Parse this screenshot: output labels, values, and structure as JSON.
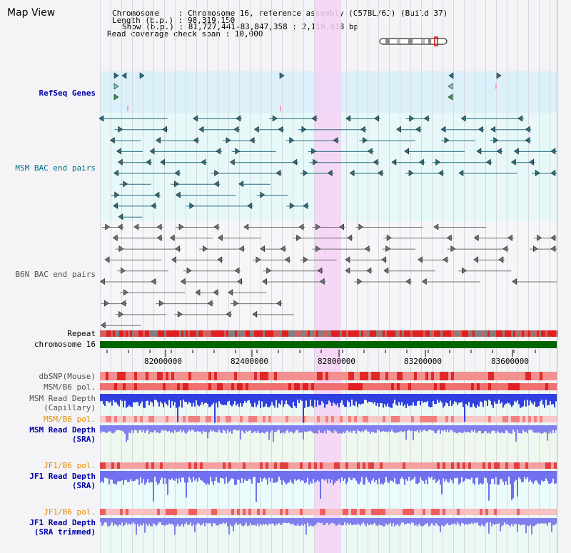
{
  "title": "Map View",
  "info": {
    "chromosome": "Chromosome    : Chromosome 16, reference assembly (C57BL/6J) (Build 37)",
    "length": "Length (b.p.) : 98,319,150",
    "show": "Show (b.p.) : 81,727,441-83,847,358 : 2,119,918 bp",
    "span": "Read coverage check span : 10,000"
  },
  "tracks": {
    "refseq": "RefSeq Genes",
    "msm_bac": "MSM BAC end pairs",
    "b6n_bac": "B6N BAC end pairs",
    "repeat": "Repeat",
    "chromosome": "chromosome 16",
    "dbsnp": "dbSNP(Mouse)",
    "msm_b6_pol_1": "MSM/B6 pol.",
    "msm_depth_cap_1": "MSM Read Depth",
    "msm_depth_cap_2": "(Capillary)",
    "msm_b6_pol_2": "MSM/B6 pol.",
    "msm_depth_sra_1": "MSM Read Depth",
    "msm_depth_sra_2": "(SRA)",
    "jf1_b6_pol_1": "JF1/B6 pol.",
    "jf1_depth_sra_1": "JF1 Read Depth",
    "jf1_depth_sra_2": "(SRA)",
    "jf1_b6_pol_2": "JF1/B6 pol.",
    "jf1_depth_trim_1": "JF1 Read Depth",
    "jf1_depth_trim_2": "(SRA trimmed)"
  },
  "axis": {
    "ticks": [
      "82000000",
      "82400000",
      "82800000",
      "83200000",
      "83600000"
    ]
  },
  "colors": {
    "refseq_bg": "#dcf0fa",
    "msm_bac_bg": "#e6f8f8",
    "highlight": "#f5d2f5",
    "chromosome_bar": "#006400",
    "refseq_label": "#0000aa",
    "msm_label": "#006e8c",
    "b6n_label": "#505050",
    "pol_label": "#e68c00",
    "depth_label": "#0000aa"
  }
}
